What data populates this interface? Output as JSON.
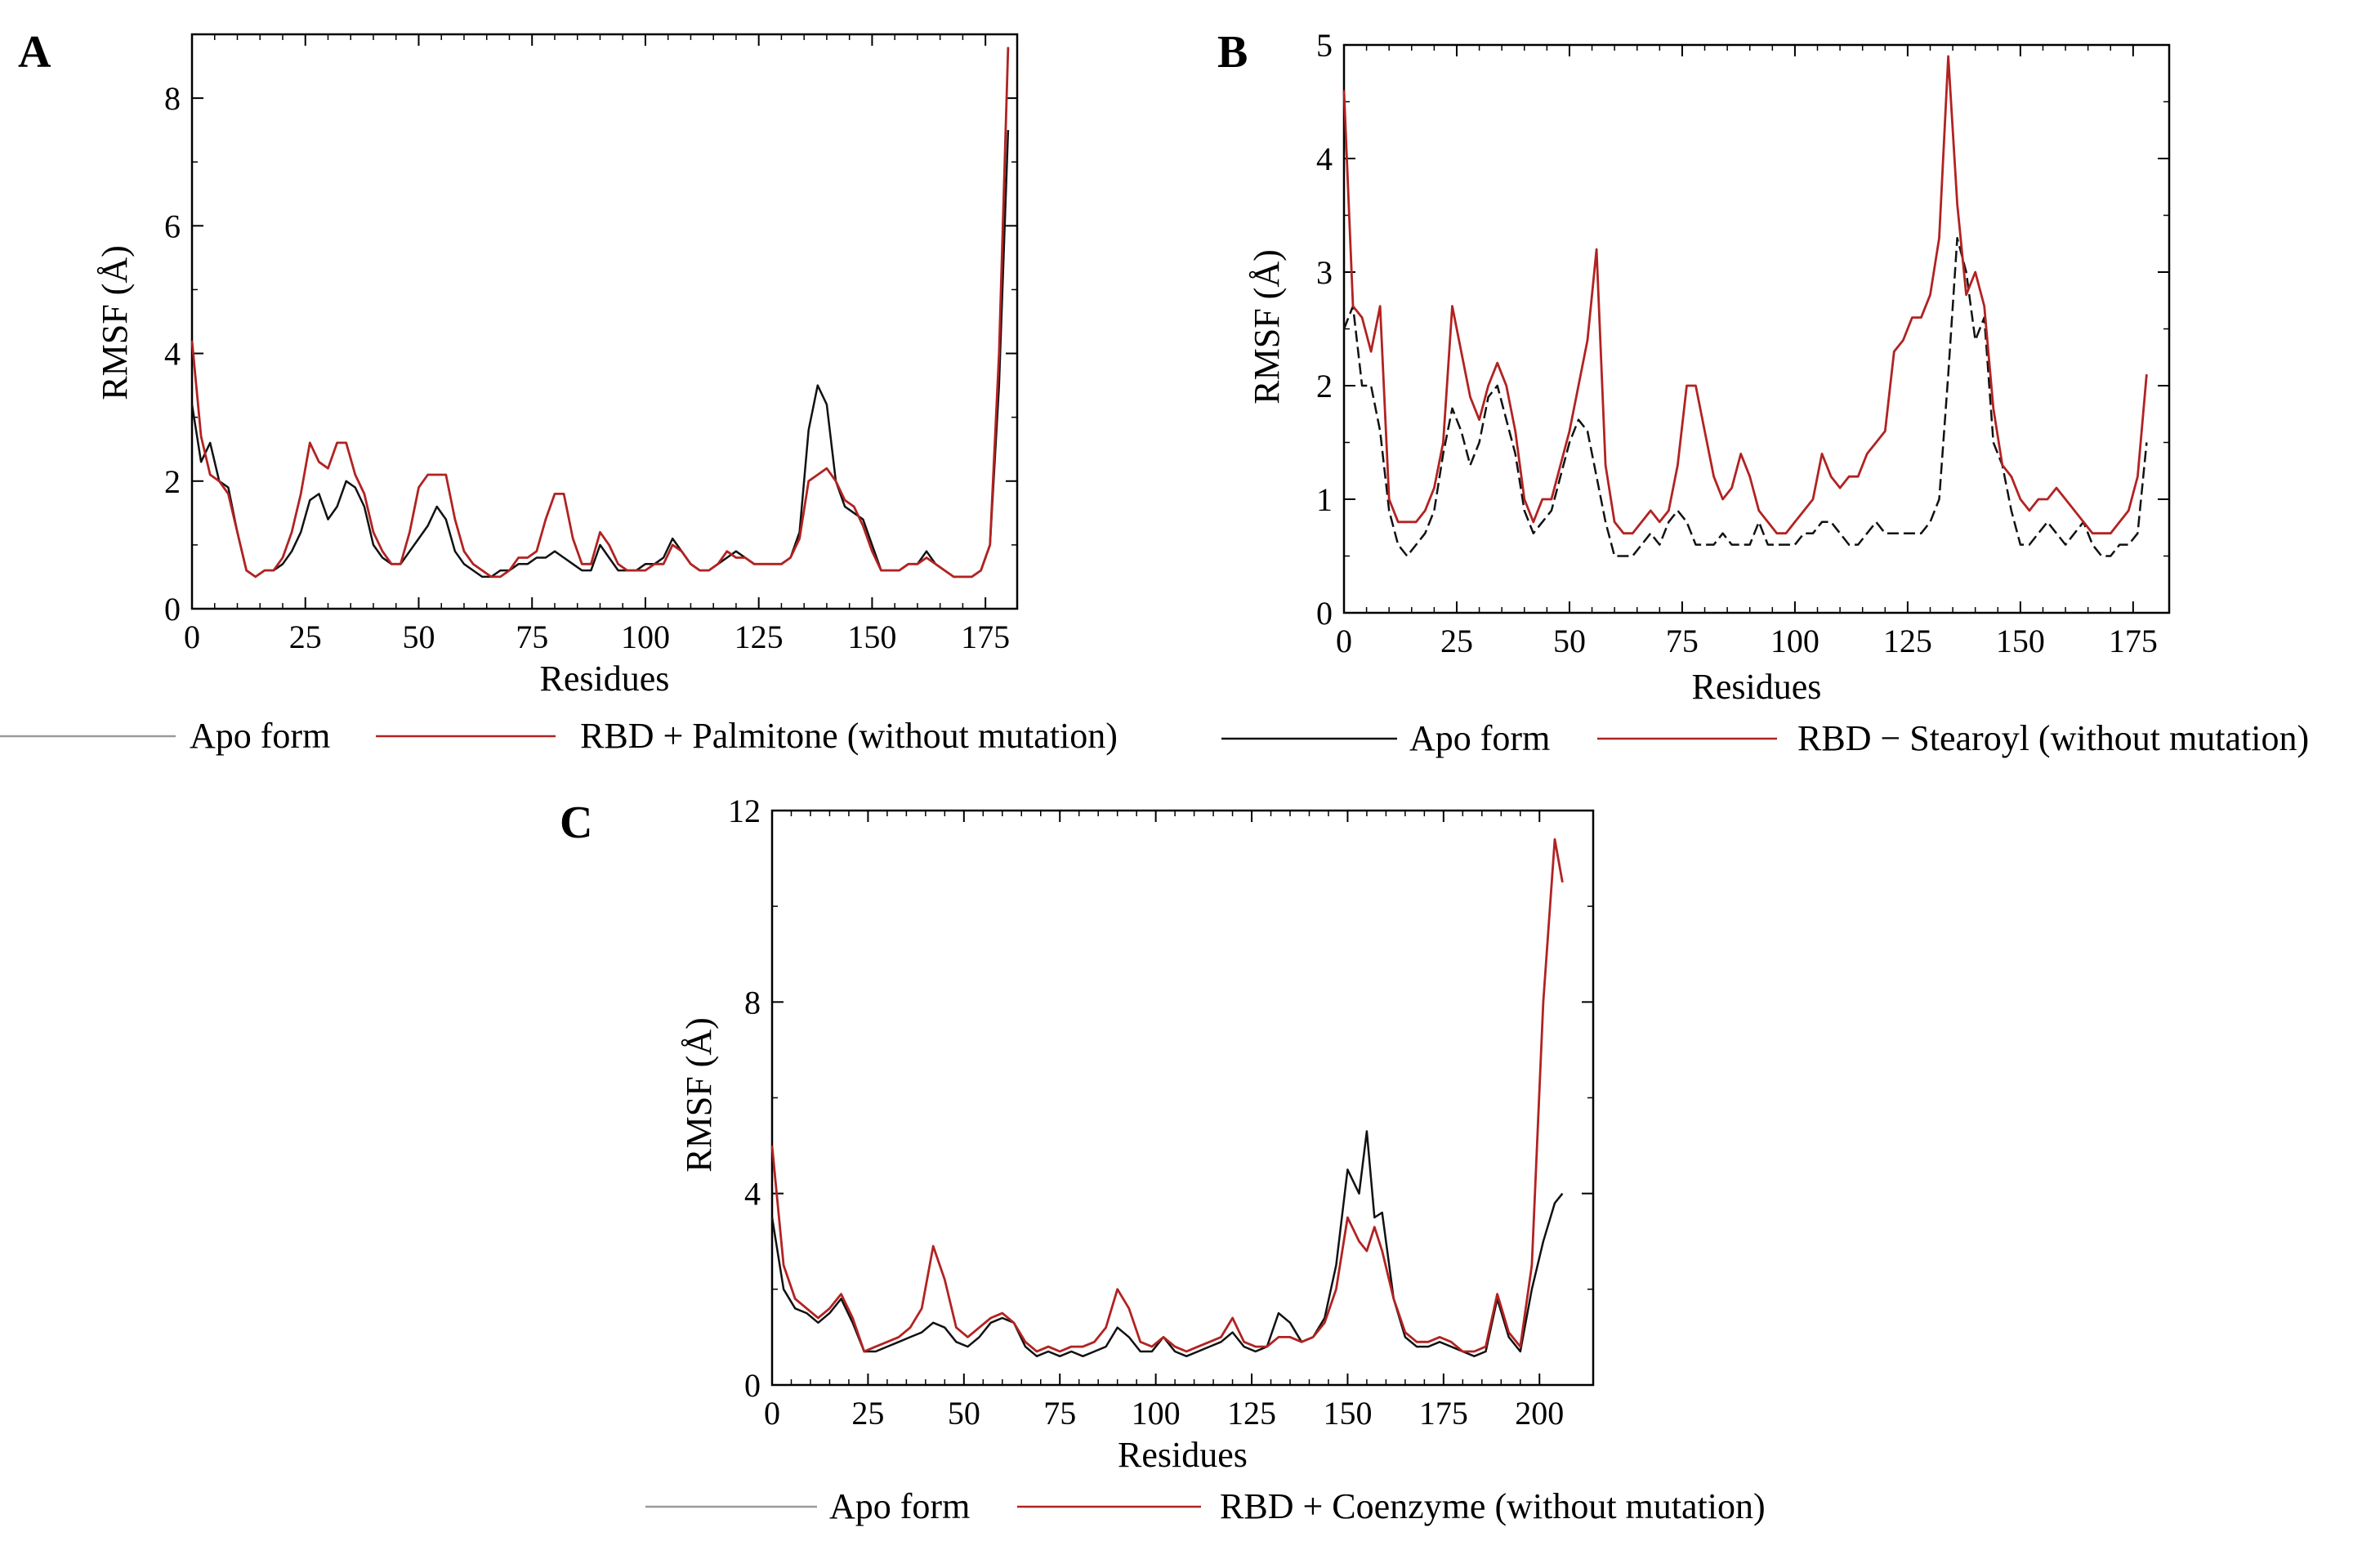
{
  "chart_data": [
    {
      "panel": "A",
      "type": "line",
      "xlabel": "Residues",
      "ylabel": "RMSF (Å)",
      "xlim": [
        0,
        182
      ],
      "ylim": [
        0,
        9
      ],
      "xticks": [
        0,
        25,
        50,
        75,
        100,
        125,
        150,
        175
      ],
      "yticks": [
        0,
        2,
        4,
        6,
        8
      ],
      "series": [
        {
          "name": "Apo form",
          "color": "#111111",
          "x": [
            0,
            2,
            4,
            6,
            8,
            10,
            12,
            14,
            16,
            18,
            20,
            22,
            24,
            26,
            28,
            30,
            32,
            34,
            36,
            38,
            40,
            42,
            44,
            46,
            48,
            50,
            52,
            54,
            56,
            58,
            60,
            62,
            64,
            66,
            68,
            70,
            72,
            74,
            76,
            78,
            80,
            82,
            84,
            86,
            88,
            90,
            92,
            94,
            96,
            98,
            100,
            102,
            104,
            106,
            108,
            110,
            112,
            114,
            116,
            118,
            120,
            122,
            124,
            126,
            128,
            130,
            132,
            134,
            136,
            138,
            140,
            142,
            144,
            146,
            148,
            150,
            152,
            154,
            156,
            158,
            160,
            162,
            164,
            166,
            168,
            170,
            172,
            174,
            176,
            178,
            180
          ],
          "y": [
            3.2,
            2.3,
            2.6,
            2.0,
            1.9,
            1.2,
            0.6,
            0.5,
            0.6,
            0.6,
            0.7,
            0.9,
            1.2,
            1.7,
            1.8,
            1.4,
            1.6,
            2.0,
            1.9,
            1.6,
            1.0,
            0.8,
            0.7,
            0.7,
            0.9,
            1.1,
            1.3,
            1.6,
            1.4,
            0.9,
            0.7,
            0.6,
            0.5,
            0.5,
            0.6,
            0.6,
            0.7,
            0.7,
            0.8,
            0.8,
            0.9,
            0.8,
            0.7,
            0.6,
            0.6,
            1.0,
            0.8,
            0.6,
            0.6,
            0.6,
            0.7,
            0.7,
            0.8,
            1.1,
            0.9,
            0.7,
            0.6,
            0.6,
            0.7,
            0.8,
            0.9,
            0.8,
            0.7,
            0.7,
            0.7,
            0.7,
            0.8,
            1.2,
            2.8,
            3.5,
            3.2,
            2.0,
            1.6,
            1.5,
            1.4,
            1.0,
            0.6,
            0.6,
            0.6,
            0.7,
            0.7,
            0.9,
            0.7,
            0.6,
            0.5,
            0.5,
            0.5,
            0.6,
            1.0,
            3.5,
            7.5
          ]
        },
        {
          "name": "RBD + Palmitone (without mutation)",
          "color": "#b22222",
          "x": [
            0,
            2,
            4,
            6,
            8,
            10,
            12,
            14,
            16,
            18,
            20,
            22,
            24,
            26,
            28,
            30,
            32,
            34,
            36,
            38,
            40,
            42,
            44,
            46,
            48,
            50,
            52,
            54,
            56,
            58,
            60,
            62,
            64,
            66,
            68,
            70,
            72,
            74,
            76,
            78,
            80,
            82,
            84,
            86,
            88,
            90,
            92,
            94,
            96,
            98,
            100,
            102,
            104,
            106,
            108,
            110,
            112,
            114,
            116,
            118,
            120,
            122,
            124,
            126,
            128,
            130,
            132,
            134,
            136,
            138,
            140,
            142,
            144,
            146,
            148,
            150,
            152,
            154,
            156,
            158,
            160,
            162,
            164,
            166,
            168,
            170,
            172,
            174,
            176,
            178,
            180
          ],
          "y": [
            4.2,
            2.7,
            2.1,
            2.0,
            1.8,
            1.2,
            0.6,
            0.5,
            0.6,
            0.6,
            0.8,
            1.2,
            1.8,
            2.6,
            2.3,
            2.2,
            2.6,
            2.6,
            2.1,
            1.8,
            1.2,
            0.9,
            0.7,
            0.7,
            1.2,
            1.9,
            2.1,
            2.1,
            2.1,
            1.4,
            0.9,
            0.7,
            0.6,
            0.5,
            0.5,
            0.6,
            0.8,
            0.8,
            0.9,
            1.4,
            1.8,
            1.8,
            1.1,
            0.7,
            0.7,
            1.2,
            1.0,
            0.7,
            0.6,
            0.6,
            0.6,
            0.7,
            0.7,
            1.0,
            0.9,
            0.7,
            0.6,
            0.6,
            0.7,
            0.9,
            0.8,
            0.8,
            0.7,
            0.7,
            0.7,
            0.7,
            0.8,
            1.1,
            2.0,
            2.1,
            2.2,
            2.0,
            1.7,
            1.6,
            1.3,
            0.9,
            0.6,
            0.6,
            0.6,
            0.7,
            0.7,
            0.8,
            0.7,
            0.6,
            0.5,
            0.5,
            0.5,
            0.6,
            1.0,
            4.0,
            8.8
          ]
        }
      ]
    },
    {
      "panel": "B",
      "type": "line",
      "xlabel": "Residues",
      "ylabel": "RMSF (Å)",
      "xlim": [
        0,
        183
      ],
      "ylim": [
        0,
        5
      ],
      "xticks": [
        0,
        25,
        50,
        75,
        100,
        125,
        150,
        175
      ],
      "yticks": [
        0,
        1,
        2,
        3,
        4,
        5
      ],
      "series": [
        {
          "name": "Apo form",
          "color": "#111111",
          "x": [
            0,
            2,
            4,
            6,
            8,
            10,
            12,
            14,
            16,
            18,
            20,
            22,
            24,
            26,
            28,
            30,
            32,
            34,
            36,
            38,
            40,
            42,
            44,
            46,
            48,
            50,
            52,
            54,
            56,
            58,
            60,
            62,
            64,
            66,
            68,
            70,
            72,
            74,
            76,
            78,
            80,
            82,
            84,
            86,
            88,
            90,
            92,
            94,
            96,
            98,
            100,
            102,
            104,
            106,
            108,
            110,
            112,
            114,
            116,
            118,
            120,
            122,
            124,
            126,
            128,
            130,
            132,
            134,
            136,
            138,
            140,
            142,
            144,
            146,
            148,
            150,
            152,
            154,
            156,
            158,
            160,
            162,
            164,
            166,
            168,
            170,
            172,
            174,
            176,
            178
          ],
          "y": [
            2.5,
            2.7,
            2.0,
            2.0,
            1.6,
            0.9,
            0.6,
            0.5,
            0.6,
            0.7,
            0.9,
            1.4,
            1.8,
            1.6,
            1.3,
            1.5,
            1.9,
            2.0,
            1.7,
            1.4,
            0.9,
            0.7,
            0.8,
            0.9,
            1.2,
            1.5,
            1.7,
            1.6,
            1.2,
            0.8,
            0.5,
            0.5,
            0.5,
            0.6,
            0.7,
            0.6,
            0.8,
            0.9,
            0.8,
            0.6,
            0.6,
            0.6,
            0.7,
            0.6,
            0.6,
            0.6,
            0.8,
            0.6,
            0.6,
            0.6,
            0.6,
            0.7,
            0.7,
            0.8,
            0.8,
            0.7,
            0.6,
            0.6,
            0.7,
            0.8,
            0.7,
            0.7,
            0.7,
            0.7,
            0.7,
            0.8,
            1.0,
            2.1,
            3.3,
            3.0,
            2.4,
            2.6,
            1.5,
            1.3,
            0.9,
            0.6,
            0.6,
            0.7,
            0.8,
            0.7,
            0.6,
            0.7,
            0.8,
            0.6,
            0.5,
            0.5,
            0.6,
            0.6,
            0.7,
            1.5
          ]
        },
        {
          "name": "RBD − Stearoyl (without mutation)",
          "color": "#b22222",
          "x": [
            0,
            2,
            4,
            6,
            8,
            10,
            12,
            14,
            16,
            18,
            20,
            22,
            24,
            26,
            28,
            30,
            32,
            34,
            36,
            38,
            40,
            42,
            44,
            46,
            48,
            50,
            52,
            54,
            56,
            58,
            60,
            62,
            64,
            66,
            68,
            70,
            72,
            74,
            76,
            78,
            80,
            82,
            84,
            86,
            88,
            90,
            92,
            94,
            96,
            98,
            100,
            102,
            104,
            106,
            108,
            110,
            112,
            114,
            116,
            118,
            120,
            122,
            124,
            126,
            128,
            130,
            132,
            134,
            136,
            138,
            140,
            142,
            144,
            146,
            148,
            150,
            152,
            154,
            156,
            158,
            160,
            162,
            164,
            166,
            168,
            170,
            172,
            174,
            176,
            178
          ],
          "y": [
            4.6,
            2.7,
            2.6,
            2.3,
            2.7,
            1.0,
            0.8,
            0.8,
            0.8,
            0.9,
            1.1,
            1.5,
            2.7,
            2.3,
            1.9,
            1.7,
            2.0,
            2.2,
            2.0,
            1.6,
            1.0,
            0.8,
            1.0,
            1.0,
            1.3,
            1.6,
            2.0,
            2.4,
            3.2,
            1.3,
            0.8,
            0.7,
            0.7,
            0.8,
            0.9,
            0.8,
            0.9,
            1.3,
            2.0,
            2.0,
            1.6,
            1.2,
            1.0,
            1.1,
            1.4,
            1.2,
            0.9,
            0.8,
            0.7,
            0.7,
            0.8,
            0.9,
            1.0,
            1.4,
            1.2,
            1.1,
            1.2,
            1.2,
            1.4,
            1.5,
            1.6,
            2.3,
            2.4,
            2.6,
            2.6,
            2.8,
            3.3,
            4.9,
            3.6,
            2.8,
            3.0,
            2.7,
            1.8,
            1.3,
            1.2,
            1.0,
            0.9,
            1.0,
            1.0,
            1.1,
            1.0,
            0.9,
            0.8,
            0.7,
            0.7,
            0.7,
            0.8,
            0.9,
            1.2,
            2.1
          ]
        }
      ]
    },
    {
      "panel": "C",
      "type": "line",
      "xlabel": "Residues",
      "ylabel": "RMSF (Å)",
      "xlim": [
        0,
        214
      ],
      "ylim": [
        0,
        12
      ],
      "xticks": [
        0,
        25,
        50,
        75,
        100,
        125,
        150,
        175,
        200
      ],
      "yticks": [
        0,
        4,
        8,
        12
      ],
      "series": [
        {
          "name": "Apo form",
          "color": "#111111",
          "x": [
            0,
            3,
            6,
            9,
            12,
            15,
            18,
            21,
            24,
            27,
            30,
            33,
            36,
            39,
            42,
            45,
            48,
            51,
            54,
            57,
            60,
            63,
            66,
            69,
            72,
            75,
            78,
            81,
            84,
            87,
            90,
            93,
            96,
            99,
            102,
            105,
            108,
            111,
            114,
            117,
            120,
            123,
            126,
            129,
            132,
            135,
            138,
            141,
            144,
            147,
            150,
            153,
            155,
            157,
            159,
            162,
            165,
            168,
            171,
            174,
            177,
            180,
            183,
            186,
            189,
            192,
            195,
            198,
            201,
            204,
            206
          ],
          "y": [
            3.5,
            2.0,
            1.6,
            1.5,
            1.3,
            1.5,
            1.8,
            1.3,
            0.7,
            0.7,
            0.8,
            0.9,
            1.0,
            1.1,
            1.3,
            1.2,
            0.9,
            0.8,
            1.0,
            1.3,
            1.4,
            1.3,
            0.8,
            0.6,
            0.7,
            0.6,
            0.7,
            0.6,
            0.7,
            0.8,
            1.2,
            1.0,
            0.7,
            0.7,
            1.0,
            0.7,
            0.6,
            0.7,
            0.8,
            0.9,
            1.1,
            0.8,
            0.7,
            0.8,
            1.5,
            1.3,
            0.9,
            1.0,
            1.4,
            2.5,
            4.5,
            4.0,
            5.3,
            3.5,
            3.6,
            1.8,
            1.0,
            0.8,
            0.8,
            0.9,
            0.8,
            0.7,
            0.6,
            0.7,
            1.8,
            1.0,
            0.7,
            2.0,
            3.0,
            3.8,
            4.0
          ]
        },
        {
          "name": "RBD + Coenzyme (without mutation)",
          "color": "#b22222",
          "x": [
            0,
            3,
            6,
            9,
            12,
            15,
            18,
            21,
            24,
            27,
            30,
            33,
            36,
            39,
            42,
            45,
            48,
            51,
            54,
            57,
            60,
            63,
            66,
            69,
            72,
            75,
            78,
            81,
            84,
            87,
            90,
            93,
            96,
            99,
            102,
            105,
            108,
            111,
            114,
            117,
            120,
            123,
            126,
            129,
            132,
            135,
            138,
            141,
            144,
            147,
            150,
            153,
            155,
            157,
            159,
            162,
            165,
            168,
            171,
            174,
            177,
            180,
            183,
            186,
            189,
            192,
            195,
            198,
            201,
            204,
            206
          ],
          "y": [
            5.0,
            2.5,
            1.8,
            1.6,
            1.4,
            1.6,
            1.9,
            1.4,
            0.7,
            0.8,
            0.9,
            1.0,
            1.2,
            1.6,
            2.9,
            2.2,
            1.2,
            1.0,
            1.2,
            1.4,
            1.5,
            1.3,
            0.9,
            0.7,
            0.8,
            0.7,
            0.8,
            0.8,
            0.9,
            1.2,
            2.0,
            1.6,
            0.9,
            0.8,
            1.0,
            0.8,
            0.7,
            0.8,
            0.9,
            1.0,
            1.4,
            0.9,
            0.8,
            0.8,
            1.0,
            1.0,
            0.9,
            1.0,
            1.3,
            2.0,
            3.5,
            3.0,
            2.8,
            3.3,
            2.8,
            1.8,
            1.1,
            0.9,
            0.9,
            1.0,
            0.9,
            0.7,
            0.7,
            0.8,
            1.9,
            1.1,
            0.8,
            2.5,
            8.0,
            11.4,
            10.5
          ]
        }
      ]
    }
  ]
}
